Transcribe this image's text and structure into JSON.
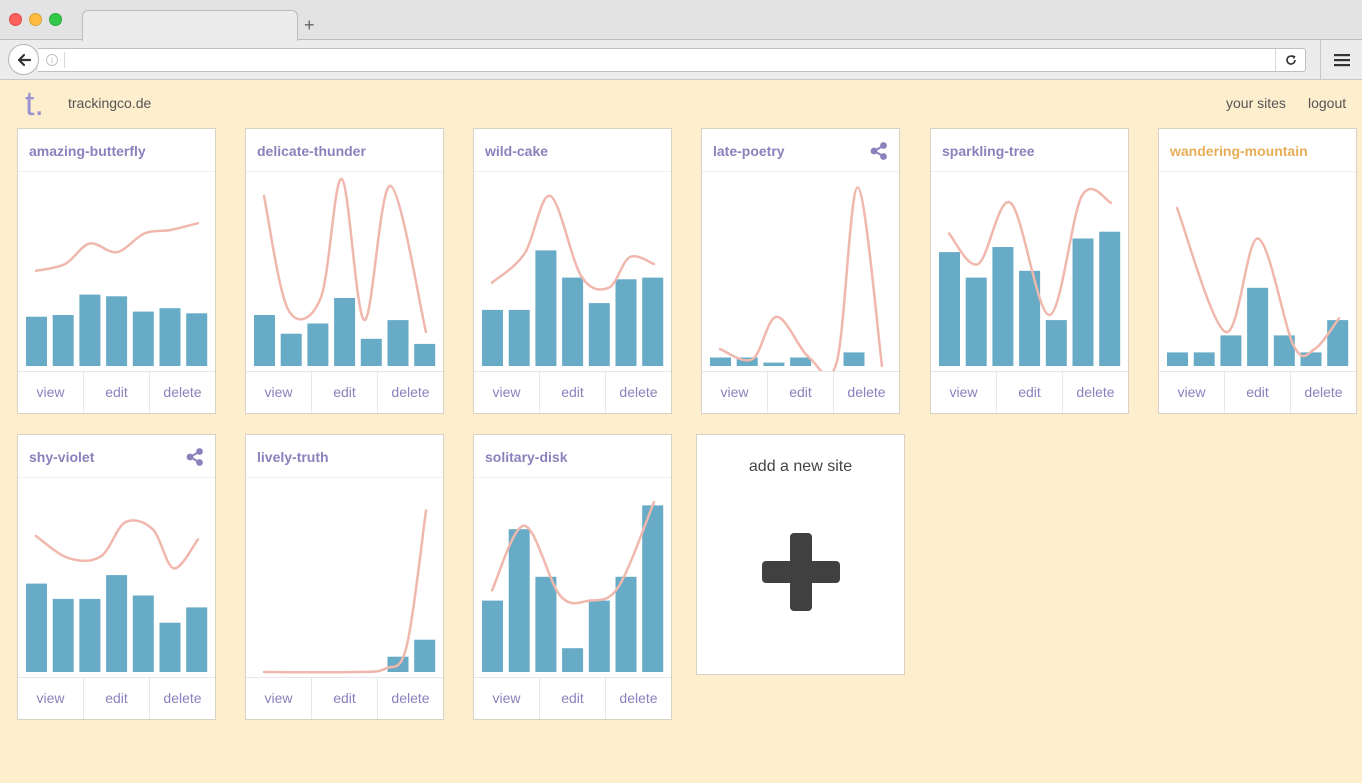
{
  "browser": {
    "menu_icon": "hamburger-icon",
    "back_icon": "back-arrow-icon",
    "reload_icon": "reload-icon",
    "new_tab_label": "+"
  },
  "header": {
    "logo": "t.",
    "site_name": "trackingco.de",
    "nav": {
      "your_sites": "your sites",
      "logout": "logout"
    }
  },
  "colors": {
    "bar": "#67abc6",
    "line": "#f0b8ad",
    "title": "#8a82bd",
    "title_alt": "#e8ad58"
  },
  "actions": {
    "view": "view",
    "edit": "edit",
    "delete": "delete"
  },
  "sites": [
    {
      "name": "amazing-butterfly",
      "shared": false,
      "highlight": false,
      "bars": [
        0.29,
        0.3,
        0.42,
        0.41,
        0.32,
        0.34,
        0.31
      ],
      "line": [
        [
          0,
          0.56
        ],
        [
          0.18,
          0.6
        ],
        [
          0.33,
          0.72
        ],
        [
          0.5,
          0.67
        ],
        [
          0.67,
          0.78
        ],
        [
          0.83,
          0.8
        ],
        [
          1,
          0.84
        ]
      ]
    },
    {
      "name": "delicate-thunder",
      "shared": false,
      "highlight": false,
      "bars": [
        0.3,
        0.19,
        0.25,
        0.4,
        0.16,
        0.27,
        0.13
      ],
      "line": [
        [
          0,
          1.0
        ],
        [
          0.15,
          0.33
        ],
        [
          0.35,
          0.4
        ],
        [
          0.48,
          1.1
        ],
        [
          0.62,
          0.27
        ],
        [
          0.78,
          1.06
        ],
        [
          1,
          0.2
        ]
      ]
    },
    {
      "name": "wild-cake",
      "shared": false,
      "highlight": false,
      "bars": [
        0.33,
        0.33,
        0.68,
        0.52,
        0.37,
        0.51,
        0.52
      ],
      "line": [
        [
          0,
          0.49
        ],
        [
          0.2,
          0.66
        ],
        [
          0.36,
          1.0
        ],
        [
          0.55,
          0.53
        ],
        [
          0.72,
          0.46
        ],
        [
          0.85,
          0.64
        ],
        [
          1,
          0.6
        ]
      ]
    },
    {
      "name": "late-poetry",
      "shared": true,
      "highlight": false,
      "bars": [
        0.05,
        0.05,
        0.02,
        0.05,
        0.0,
        0.08,
        0.0
      ],
      "line": [
        [
          0,
          0.1
        ],
        [
          0.2,
          0.04
        ],
        [
          0.35,
          0.29
        ],
        [
          0.55,
          0.05
        ],
        [
          0.72,
          0.02
        ],
        [
          0.85,
          1.05
        ],
        [
          1,
          0.0
        ]
      ]
    },
    {
      "name": "sparkling-tree",
      "shared": false,
      "highlight": false,
      "bars": [
        0.67,
        0.52,
        0.7,
        0.56,
        0.27,
        0.75,
        0.79
      ],
      "line": [
        [
          0,
          0.78
        ],
        [
          0.18,
          0.6
        ],
        [
          0.38,
          0.96
        ],
        [
          0.62,
          0.3
        ],
        [
          0.82,
          1.0
        ],
        [
          1,
          0.96
        ]
      ]
    },
    {
      "name": "wandering-mountain",
      "shared": false,
      "highlight": true,
      "bars": [
        0.08,
        0.08,
        0.18,
        0.46,
        0.18,
        0.08,
        0.27
      ],
      "line": [
        [
          0,
          0.93
        ],
        [
          0.3,
          0.2
        ],
        [
          0.5,
          0.75
        ],
        [
          0.72,
          0.12
        ],
        [
          0.85,
          0.1
        ],
        [
          1,
          0.28
        ]
      ]
    },
    {
      "name": "shy-violet",
      "shared": true,
      "highlight": false,
      "bars": [
        0.52,
        0.43,
        0.43,
        0.57,
        0.45,
        0.29,
        0.38
      ],
      "line": [
        [
          0,
          0.8
        ],
        [
          0.2,
          0.67
        ],
        [
          0.4,
          0.68
        ],
        [
          0.55,
          0.88
        ],
        [
          0.72,
          0.84
        ],
        [
          0.85,
          0.61
        ],
        [
          1,
          0.78
        ]
      ]
    },
    {
      "name": "lively-truth",
      "shared": false,
      "highlight": false,
      "bars": [
        0.0,
        0.0,
        0.0,
        0.0,
        0.0,
        0.09,
        0.19
      ],
      "line": [
        [
          0,
          0.0
        ],
        [
          0.55,
          0.0
        ],
        [
          0.75,
          0.02
        ],
        [
          0.88,
          0.15
        ],
        [
          1,
          0.95
        ]
      ]
    },
    {
      "name": "solitary-disk",
      "shared": false,
      "highlight": false,
      "bars": [
        0.42,
        0.84,
        0.56,
        0.14,
        0.42,
        0.56,
        0.98
      ],
      "line": [
        [
          0,
          0.48
        ],
        [
          0.2,
          0.86
        ],
        [
          0.42,
          0.45
        ],
        [
          0.6,
          0.42
        ],
        [
          0.78,
          0.5
        ],
        [
          1,
          1.0
        ]
      ]
    }
  ],
  "add_site": {
    "label": "add a new site",
    "icon": "plus-icon"
  }
}
